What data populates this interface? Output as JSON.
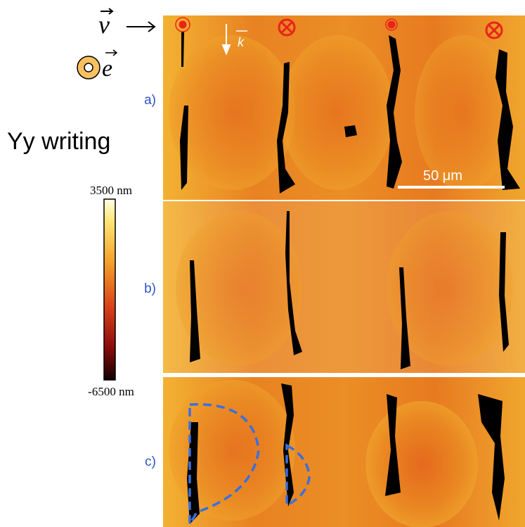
{
  "figure": {
    "symbols": {
      "velocity": "v",
      "polarization": "e",
      "wavevector": "k"
    },
    "title": "Yy writing",
    "colorbar": {
      "max_label": "3500 nm",
      "min_label": "-6500 nm"
    },
    "panels": [
      {
        "label": "a)"
      },
      {
        "label": "b)"
      },
      {
        "label": "c)"
      }
    ],
    "scale_bar": "50 μm"
  }
}
